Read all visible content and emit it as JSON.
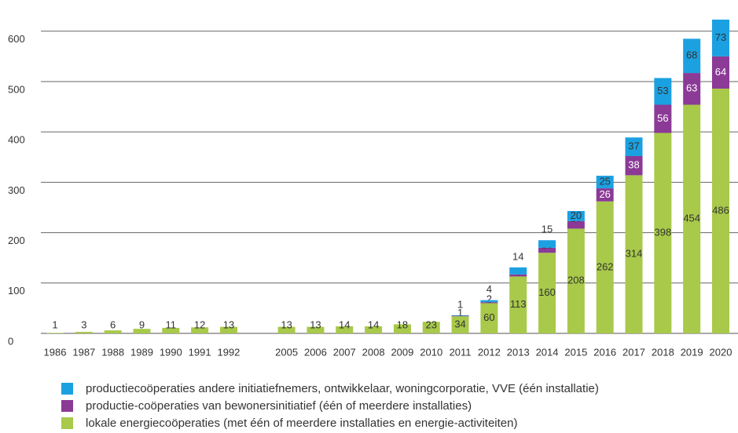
{
  "chart_data": {
    "type": "stacked-bar",
    "categories": [
      "1986",
      "1987",
      "1988",
      "1989",
      "1990",
      "1991",
      "1992",
      null,
      "2005",
      "2006",
      "2007",
      "2008",
      "2009",
      "2010",
      "2011",
      "2012",
      "2013",
      "2014",
      "2015",
      "2016",
      "2017",
      "2018",
      "2019",
      "2020"
    ],
    "series": [
      {
        "name": "lokale energiecoöperaties (met één of meerdere installaties en energie-activiteiten)",
        "color": "#a8c94a",
        "values": [
          1,
          3,
          6,
          9,
          11,
          12,
          13,
          null,
          13,
          13,
          14,
          14,
          18,
          23,
          34,
          60,
          113,
          160,
          208,
          262,
          314,
          398,
          454,
          486
        ]
      },
      {
        "name": "productie-coöperaties van bewonersinitiatief (één of meerdere installaties)",
        "color": "#8b3a96",
        "values": [
          null,
          null,
          null,
          null,
          null,
          null,
          null,
          null,
          null,
          null,
          null,
          null,
          null,
          null,
          1,
          2,
          4,
          10,
          15,
          26,
          38,
          56,
          63,
          64
        ]
      },
      {
        "name": "productiecoöperaties andere initiatiefnemers, ontwikkelaar, woningcorporatie, VVE (één installatie)",
        "color": "#1ba1e2",
        "values": [
          null,
          null,
          null,
          null,
          null,
          null,
          null,
          null,
          null,
          null,
          null,
          null,
          null,
          null,
          1,
          4,
          14,
          15,
          20,
          25,
          37,
          53,
          68,
          73
        ]
      }
    ],
    "ylim": [
      0,
      623
    ],
    "yticks": [
      0,
      100,
      200,
      300,
      400,
      500,
      600
    ],
    "grid": true
  }
}
